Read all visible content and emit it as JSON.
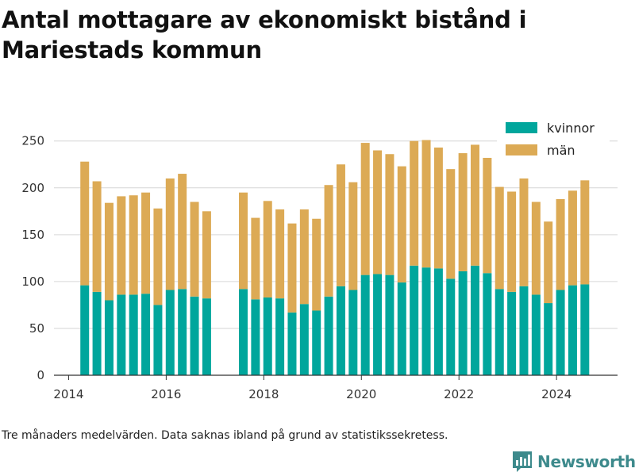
{
  "title": "Antal mottagare av ekonomiskt bistånd i Mariestads kommun",
  "footnote": "Tre månaders medelvärden. Data saknas ibland på grund av statistikssekretess.",
  "brand": {
    "name": "Newsworthy"
  },
  "chart_data": {
    "type": "bar",
    "stacked": true,
    "title": "Antal mottagare av ekonomiskt bistånd i Mariestads kommun",
    "xlabel": "",
    "ylabel": "",
    "ylim": [
      0,
      265
    ],
    "xlim": [
      2013.7,
      2025.25
    ],
    "xticks": [
      2014,
      2016,
      2018,
      2020,
      2022,
      2024
    ],
    "yticks": [
      0,
      50,
      100,
      150,
      200,
      250
    ],
    "grid": "horizontal",
    "legend_position": "top-right",
    "x": [
      2014.33,
      2014.58,
      2014.83,
      2015.08,
      2015.33,
      2015.58,
      2015.83,
      2016.08,
      2016.33,
      2016.58,
      2016.83,
      2017.58,
      2017.83,
      2018.08,
      2018.33,
      2018.58,
      2018.83,
      2019.08,
      2019.33,
      2019.58,
      2019.83,
      2020.08,
      2020.33,
      2020.58,
      2020.83,
      2021.08,
      2021.33,
      2021.58,
      2021.83,
      2022.08,
      2022.33,
      2022.58,
      2022.83,
      2023.08,
      2023.33,
      2023.58,
      2023.83,
      2024.08,
      2024.33,
      2024.58
    ],
    "series": [
      {
        "name": "kvinnor",
        "color": "#00a69c",
        "values": [
          96,
          89,
          80,
          86,
          86,
          87,
          75,
          91,
          92,
          84,
          82,
          92,
          81,
          83,
          82,
          67,
          76,
          69,
          84,
          95,
          91,
          107,
          108,
          107,
          99,
          117,
          115,
          114,
          103,
          111,
          117,
          109,
          92,
          89,
          95,
          86,
          77,
          91,
          96,
          97
        ]
      },
      {
        "name": "män",
        "color": "#dcaa55",
        "values": [
          132,
          118,
          104,
          105,
          106,
          108,
          103,
          119,
          123,
          101,
          93,
          103,
          87,
          103,
          95,
          95,
          101,
          98,
          119,
          130,
          115,
          141,
          132,
          129,
          124,
          133,
          136,
          129,
          117,
          126,
          129,
          123,
          109,
          107,
          115,
          99,
          87,
          97,
          101,
          111
        ]
      }
    ]
  }
}
